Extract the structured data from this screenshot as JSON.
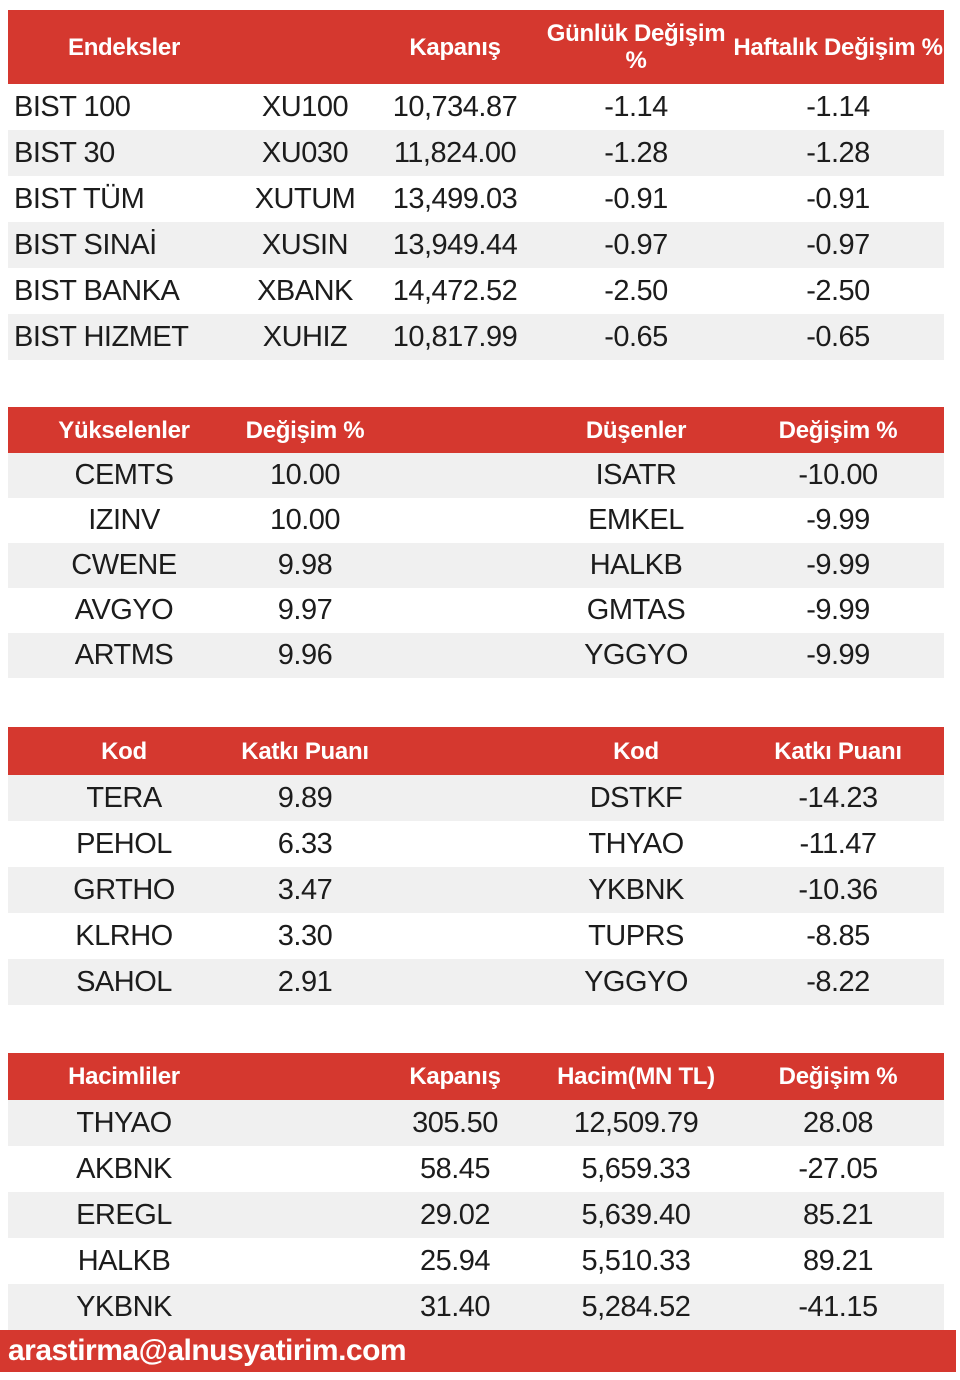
{
  "colors": {
    "header_red": "#d5382f",
    "row_alt": "#f0f0f0",
    "row_white": "#ffffff",
    "text_dark": "#1c1c1c",
    "header_text": "#ffffff"
  },
  "indices": {
    "headers": {
      "name": "Endeksler",
      "close": "Kapanış",
      "daily": "Günlük Değişim %",
      "weekly": "Haftalık Değişim %"
    },
    "rows": [
      {
        "name": "BIST 100",
        "code": "XU100",
        "close": "10,734.87",
        "daily": "-1.14",
        "weekly": "-1.14"
      },
      {
        "name": "BIST 30",
        "code": "XU030",
        "close": "11,824.00",
        "daily": "-1.28",
        "weekly": "-1.28"
      },
      {
        "name": "BIST TÜM",
        "code": "XUTUM",
        "close": "13,499.03",
        "daily": "-0.91",
        "weekly": "-0.91"
      },
      {
        "name": "BIST SINAİ",
        "code": "XUSIN",
        "close": "13,949.44",
        "daily": "-0.97",
        "weekly": "-0.97"
      },
      {
        "name": "BIST BANKA",
        "code": "XBANK",
        "close": "14,472.52",
        "daily": "-2.50",
        "weekly": "-2.50"
      },
      {
        "name": "BIST HIZMET",
        "code": "XUHIZ",
        "close": "10,817.99",
        "daily": "-0.65",
        "weekly": "-0.65"
      }
    ]
  },
  "movers": {
    "headers": {
      "gainers": "Yükselenler",
      "gainers_change": "Değişim %",
      "losers": "Düşenler",
      "losers_change": "Değişim %"
    },
    "rows": [
      {
        "gainer": "CEMTS",
        "gainer_change": "10.00",
        "loser": "ISATR",
        "loser_change": "-10.00"
      },
      {
        "gainer": "IZINV",
        "gainer_change": "10.00",
        "loser": "EMKEL",
        "loser_change": "-9.99"
      },
      {
        "gainer": "CWENE",
        "gainer_change": "9.98",
        "loser": "HALKB",
        "loser_change": "-9.99"
      },
      {
        "gainer": "AVGYO",
        "gainer_change": "9.97",
        "loser": "GMTAS",
        "loser_change": "-9.99"
      },
      {
        "gainer": "ARTMS",
        "gainer_change": "9.96",
        "loser": "YGGYO",
        "loser_change": "-9.99"
      }
    ]
  },
  "contributions": {
    "headers": {
      "code_left": "Kod",
      "points_left": "Katkı Puanı",
      "code_right": "Kod",
      "points_right": "Katkı Puanı"
    },
    "rows": [
      {
        "pos_code": "TERA",
        "pos_points": "9.89",
        "neg_code": "DSTKF",
        "neg_points": "-14.23"
      },
      {
        "pos_code": "PEHOL",
        "pos_points": "6.33",
        "neg_code": "THYAO",
        "neg_points": "-11.47"
      },
      {
        "pos_code": "GRTHO",
        "pos_points": "3.47",
        "neg_code": "YKBNK",
        "neg_points": "-10.36"
      },
      {
        "pos_code": "KLRHO",
        "pos_points": "3.30",
        "neg_code": "TUPRS",
        "neg_points": "-8.85"
      },
      {
        "pos_code": "SAHOL",
        "pos_points": "2.91",
        "neg_code": "YGGYO",
        "neg_points": "-8.22"
      }
    ]
  },
  "volumes": {
    "headers": {
      "name": "Hacimliler",
      "close": "Kapanış",
      "volume": "Hacim(MN TL)",
      "change": "Değişim %"
    },
    "rows": [
      {
        "name": "THYAO",
        "close": "305.50",
        "volume": "12,509.79",
        "change": "28.08"
      },
      {
        "name": "AKBNK",
        "close": "58.45",
        "volume": "5,659.33",
        "change": "-27.05"
      },
      {
        "name": "EREGL",
        "close": "29.02",
        "volume": "5,639.40",
        "change": "85.21"
      },
      {
        "name": "HALKB",
        "close": "25.94",
        "volume": "5,510.33",
        "change": "89.21"
      },
      {
        "name": "YKBNK",
        "close": "31.40",
        "volume": "5,284.52",
        "change": "-41.15"
      }
    ]
  },
  "footer": {
    "email": "arastirma@alnusyatirim.com"
  }
}
